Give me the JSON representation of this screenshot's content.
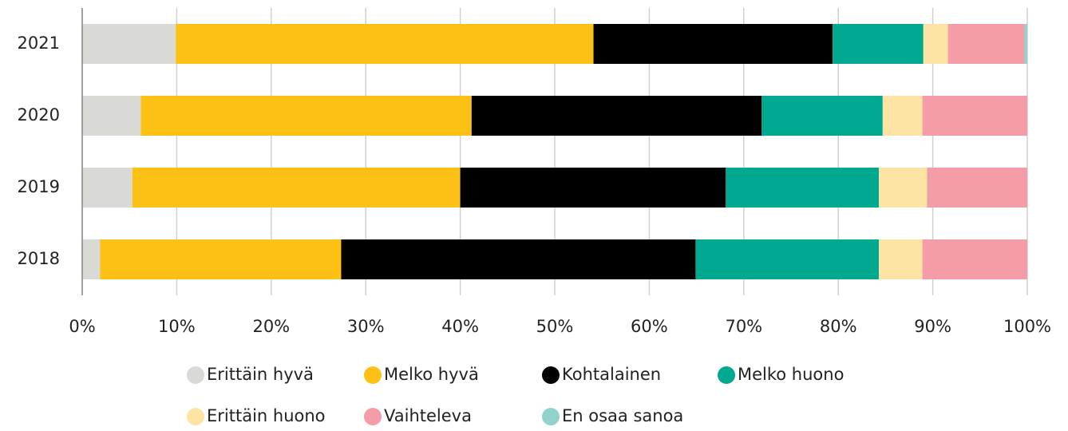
{
  "chart_data": {
    "type": "stacked_barh",
    "categories": [
      "2021",
      "2020",
      "2019",
      "2018"
    ],
    "series": [
      {
        "name": "Erittäin hyvä",
        "color": "#d9d9d6",
        "values": [
          9.9,
          6.2,
          5.3,
          1.9
        ]
      },
      {
        "name": "Melko hyvä",
        "color": "#fdc014",
        "values": [
          44.2,
          35.0,
          34.7,
          25.5
        ]
      },
      {
        "name": "Kohtalainen",
        "color": "#000000",
        "values": [
          25.3,
          30.7,
          28.1,
          37.5
        ]
      },
      {
        "name": "Melko huono",
        "color": "#00a88f",
        "values": [
          9.6,
          12.8,
          16.2,
          19.4
        ]
      },
      {
        "name": "Erittäin huono",
        "color": "#fde4a5",
        "values": [
          2.6,
          4.2,
          5.1,
          4.6
        ]
      },
      {
        "name": "Vaihteleva",
        "color": "#f49ca8",
        "values": [
          8.1,
          11.1,
          10.6,
          11.1
        ]
      },
      {
        "name": "En osaa sanoa",
        "color": "#8fd3cb",
        "values": [
          0.3,
          0,
          0,
          0
        ]
      }
    ],
    "xlim": [
      0,
      100
    ],
    "xticks": [
      {
        "value": 0,
        "label": "0%"
      },
      {
        "value": 10,
        "label": "10%"
      },
      {
        "value": 20,
        "label": "20%"
      },
      {
        "value": 30,
        "label": "30%"
      },
      {
        "value": 40,
        "label": "40%"
      },
      {
        "value": 50,
        "label": "50%"
      },
      {
        "value": 60,
        "label": "60%"
      },
      {
        "value": 70,
        "label": "70%"
      },
      {
        "value": 80,
        "label": "80%"
      },
      {
        "value": 90,
        "label": "90%"
      },
      {
        "value": 100,
        "label": "100%"
      }
    ],
    "grid": true
  }
}
